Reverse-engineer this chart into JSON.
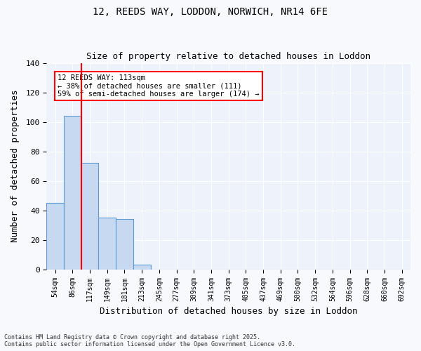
{
  "title_line1": "12, REEDS WAY, LODDON, NORWICH, NR14 6FE",
  "title_line2": "Size of property relative to detached houses in Loddon",
  "xlabel": "Distribution of detached houses by size in Loddon",
  "ylabel": "Number of detached properties",
  "bar_color": "#c7d9f0",
  "bar_edge_color": "#5b9bd5",
  "background_color": "#eef3fb",
  "grid_color": "#ffffff",
  "bins": [
    "54sqm",
    "86sqm",
    "117sqm",
    "149sqm",
    "181sqm",
    "213sqm",
    "245sqm",
    "277sqm",
    "309sqm",
    "341sqm",
    "373sqm",
    "405sqm",
    "437sqm",
    "469sqm",
    "500sqm",
    "532sqm",
    "564sqm",
    "596sqm",
    "628sqm",
    "660sqm",
    "692sqm"
  ],
  "values": [
    45,
    104,
    72,
    35,
    34,
    3,
    0,
    0,
    0,
    0,
    0,
    0,
    0,
    0,
    0,
    0,
    0,
    0,
    0,
    0,
    0
  ],
  "ylim": [
    0,
    140
  ],
  "yticks": [
    0,
    20,
    40,
    60,
    80,
    100,
    120,
    140
  ],
  "annotation_title": "12 REEDS WAY: 113sqm",
  "annotation_line2": "← 38% of detached houses are smaller (111)",
  "annotation_line3": "59% of semi-detached houses are larger (174) →",
  "footnote_line1": "Contains HM Land Registry data © Crown copyright and database right 2025.",
  "footnote_line2": "Contains public sector information licensed under the Open Government Licence v3.0."
}
